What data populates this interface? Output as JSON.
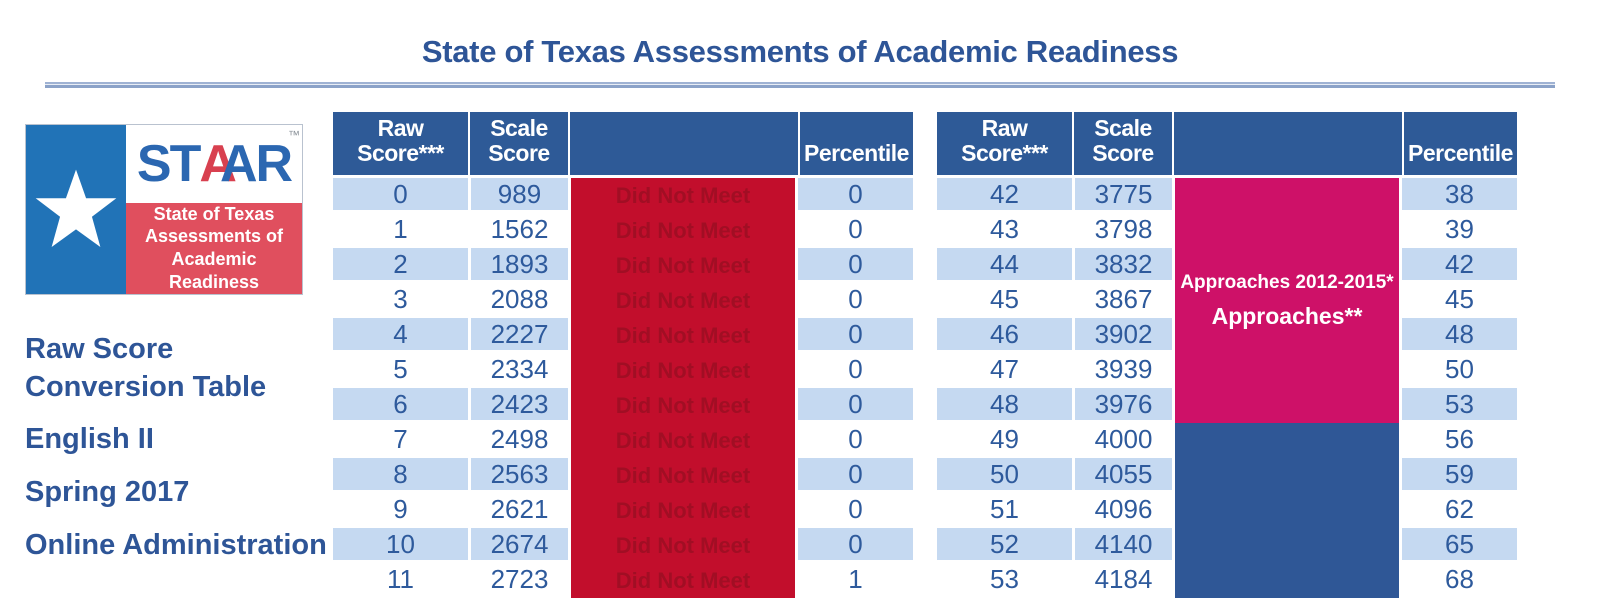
{
  "title": "State of Texas Assessments of Academic Readiness",
  "colors": {
    "title_blue": "#2E5597",
    "header_blue": "#2E5A97",
    "row_light_blue": "#C5D9F1",
    "number_blue": "#2E5A9C",
    "did_not_meet_bg": "#C20E2C",
    "did_not_meet_text": "#A10E24",
    "approaches_pink": "#CE1168",
    "upper_band_blue": "#2F5796",
    "logo_panel_blue": "#2173B7",
    "logo_red": "#E04F5E"
  },
  "logo": {
    "brand_st": "ST",
    "brand_a_red": "A",
    "brand_a_blue": "A",
    "brand_r": "R",
    "trademark": "™",
    "tagline": [
      "State of Texas",
      "Assessments of",
      "Academic Readiness"
    ]
  },
  "sidebar": {
    "lines": [
      "Raw Score Conversion Table",
      "English II",
      "Spring 2017",
      "Online Administration"
    ]
  },
  "table_headers": {
    "raw": "Raw Score***",
    "scale": "Scale Score",
    "performance": "",
    "percentile": "Percentile"
  },
  "tables": [
    {
      "name": "low-scores",
      "rows": [
        {
          "raw": "0",
          "scale": "989",
          "pct": "0"
        },
        {
          "raw": "1",
          "scale": "1562",
          "pct": "0"
        },
        {
          "raw": "2",
          "scale": "1893",
          "pct": "0"
        },
        {
          "raw": "3",
          "scale": "2088",
          "pct": "0"
        },
        {
          "raw": "4",
          "scale": "2227",
          "pct": "0"
        },
        {
          "raw": "5",
          "scale": "2334",
          "pct": "0"
        },
        {
          "raw": "6",
          "scale": "2423",
          "pct": "0"
        },
        {
          "raw": "7",
          "scale": "2498",
          "pct": "0"
        },
        {
          "raw": "8",
          "scale": "2563",
          "pct": "0"
        },
        {
          "raw": "9",
          "scale": "2621",
          "pct": "0"
        },
        {
          "raw": "10",
          "scale": "2674",
          "pct": "0"
        },
        {
          "raw": "11",
          "scale": "2723",
          "pct": "1"
        }
      ],
      "bands": [
        {
          "style": "red",
          "rows": 12,
          "per_row_label": "Did Not Meet",
          "label_lines": []
        }
      ]
    },
    {
      "name": "high-scores",
      "rows": [
        {
          "raw": "42",
          "scale": "3775",
          "pct": "38"
        },
        {
          "raw": "43",
          "scale": "3798",
          "pct": "39"
        },
        {
          "raw": "44",
          "scale": "3832",
          "pct": "42"
        },
        {
          "raw": "45",
          "scale": "3867",
          "pct": "45"
        },
        {
          "raw": "46",
          "scale": "3902",
          "pct": "48"
        },
        {
          "raw": "47",
          "scale": "3939",
          "pct": "50"
        },
        {
          "raw": "48",
          "scale": "3976",
          "pct": "53"
        },
        {
          "raw": "49",
          "scale": "4000",
          "pct": "56"
        },
        {
          "raw": "50",
          "scale": "4055",
          "pct": "59"
        },
        {
          "raw": "51",
          "scale": "4096",
          "pct": "62"
        },
        {
          "raw": "52",
          "scale": "4140",
          "pct": "65"
        },
        {
          "raw": "53",
          "scale": "4184",
          "pct": "68"
        }
      ],
      "bands": [
        {
          "style": "pink",
          "rows": 7,
          "per_row_label": "",
          "label_lines": [
            "Approaches 2012-2015*",
            "Approaches**"
          ]
        },
        {
          "style": "blue",
          "rows": 5,
          "per_row_label": "",
          "label_lines": []
        }
      ]
    }
  ]
}
